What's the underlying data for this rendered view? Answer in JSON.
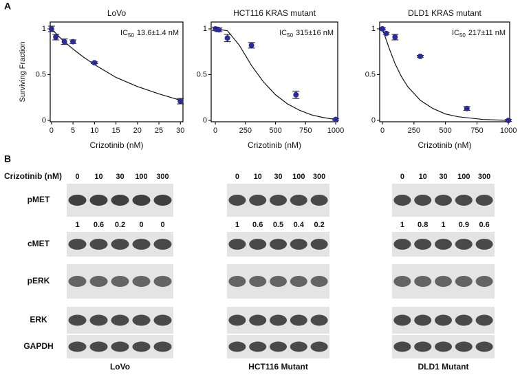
{
  "panel_labels": [
    "A",
    "B"
  ],
  "chart_data": [
    {
      "type": "scatter",
      "title": "LoVo",
      "ic50": {
        "prefix": "IC",
        "sub": "50",
        "text": "13.6±1.4 nM"
      },
      "xlabel": "Crizotinib (nM)",
      "ylabel": "Surviving Fraction",
      "color": "#2b2b9c",
      "x": [
        0,
        1,
        3,
        5,
        10,
        30
      ],
      "values": [
        1.0,
        0.91,
        0.86,
        0.86,
        0.63,
        0.21
      ],
      "errors": [
        0.03,
        0.03,
        0.03,
        0.02,
        0.01,
        0.03
      ],
      "fit_x": [
        0,
        2.5,
        5,
        7.5,
        10,
        15,
        20,
        25,
        30
      ],
      "fit_values": [
        1,
        0.88,
        0.78,
        0.69,
        0.61,
        0.47,
        0.37,
        0.29,
        0.22
      ],
      "xlim": [
        -0.3,
        30.6
      ],
      "xticks": [
        0,
        5,
        10,
        15,
        20,
        25,
        30
      ],
      "ylim": [
        -0.015,
        1.075
      ],
      "yticks": [
        0,
        0.5,
        1
      ]
    },
    {
      "type": "scatter",
      "title": "HCT116 KRAS mutant",
      "ic50": {
        "prefix": "IC",
        "sub": "50",
        "text": "315±16 nM"
      },
      "xlabel": "Crizotinib (nM)",
      "color": "#2b2b9c",
      "x": [
        0,
        30,
        100,
        300,
        670,
        1000
      ],
      "values": [
        1.0,
        0.99,
        0.9,
        0.82,
        0.28,
        0.01
      ],
      "errors": [
        0.02,
        0.02,
        0.04,
        0.03,
        0.04,
        0.01
      ],
      "fit_x": [
        0,
        100,
        200,
        300,
        400,
        500,
        600,
        700,
        800,
        900,
        1000
      ],
      "fit_values": [
        1,
        0.98,
        0.82,
        0.6,
        0.42,
        0.28,
        0.18,
        0.11,
        0.06,
        0.03,
        0.01
      ],
      "xlim": [
        -35,
        1017
      ],
      "xticks": [
        0,
        250,
        500,
        750,
        1000
      ],
      "ylim": [
        -0.015,
        1.075
      ],
      "yticks": [
        0,
        0.5,
        1
      ]
    },
    {
      "type": "scatter",
      "title": "DLD1 KRAS mutant",
      "ic50": {
        "prefix": "IC",
        "sub": "50",
        "text": "217±11 nM"
      },
      "xlabel": "Crizotinib (nM)",
      "color": "#2b2b9c",
      "x": [
        0,
        30,
        100,
        300,
        670,
        1000
      ],
      "values": [
        1.0,
        0.95,
        0.91,
        0.7,
        0.13,
        0.0
      ],
      "errors": [
        0.01,
        0.01,
        0.03,
        0.01,
        0.02,
        0.01
      ],
      "fit_x": [
        0,
        50,
        100,
        150,
        200,
        300,
        400,
        500,
        600,
        800,
        1000
      ],
      "fit_values": [
        1,
        0.8,
        0.62,
        0.48,
        0.37,
        0.22,
        0.13,
        0.07,
        0.04,
        0.01,
        0
      ],
      "xlim": [
        -22,
        1010
      ],
      "xticks": [
        0,
        250,
        500,
        750,
        1000
      ],
      "ylim": [
        -0.015,
        1.075
      ],
      "yticks": [
        0,
        0.5,
        1
      ]
    }
  ],
  "blot": {
    "dose_label": "Crizotinib (nM)",
    "rows": [
      "pMET",
      "cMET",
      "pERK",
      "ERK",
      "GAPDH"
    ],
    "groups": [
      {
        "name": "LoVo",
        "doses": [
          0,
          10,
          30,
          100,
          300
        ],
        "pmet_quant": [
          1,
          0.6,
          0.2,
          0,
          0
        ]
      },
      {
        "name": "HCT116 Mutant",
        "doses": [
          0,
          10,
          30,
          100,
          300
        ],
        "pmet_quant": [
          1,
          0.6,
          0.5,
          0.4,
          0.2
        ]
      },
      {
        "name": "DLD1 Mutant",
        "doses": [
          0,
          10,
          30,
          100,
          300
        ],
        "pmet_quant": [
          1,
          0.8,
          1,
          0.9,
          0.6
        ]
      }
    ]
  }
}
